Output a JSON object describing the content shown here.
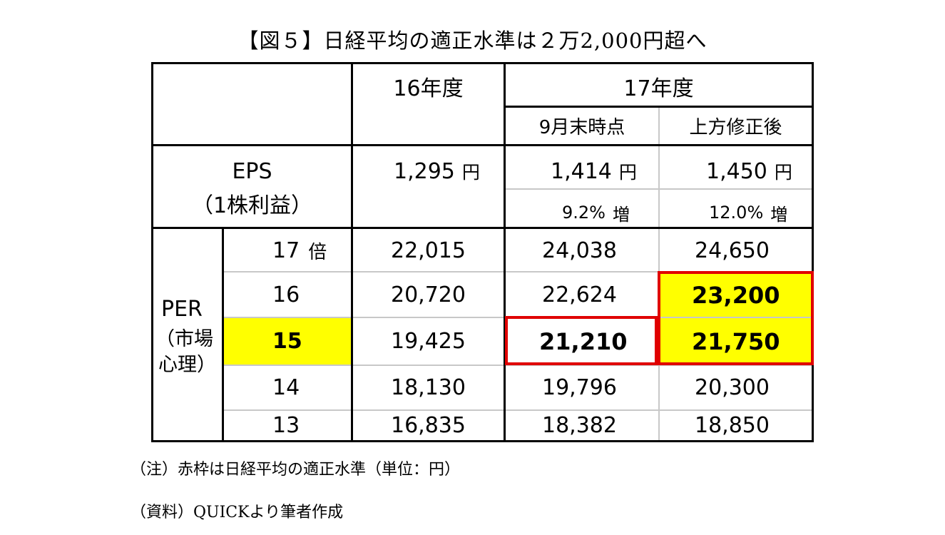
{
  "title": "【図５】日経平均の適正水準は２万2,000円超へ",
  "header": {
    "fy16": "16年度",
    "fy17": "17年度",
    "sep_end": "9月末時点",
    "revised": "上方修正後"
  },
  "eps": {
    "label1": "EPS",
    "label2": "（1株利益）",
    "fy16": "1,295",
    "sep_end": "1,414",
    "revised": "1,450",
    "unit": "円",
    "sep_end_growth": "9.2%",
    "revised_growth": "12.0%",
    "growth_unit": "増"
  },
  "per": {
    "label1": "PER",
    "label2": "（市場",
    "label3": "心理）",
    "times_unit": "倍",
    "rows": [
      {
        "multiple": "17",
        "fy16": "22,015",
        "sep_end": "24,038",
        "revised": "24,650"
      },
      {
        "multiple": "16",
        "fy16": "20,720",
        "sep_end": "22,624",
        "revised": "23,200"
      },
      {
        "multiple": "15",
        "fy16": "19,425",
        "sep_end": "21,210",
        "revised": "21,750"
      },
      {
        "multiple": "14",
        "fy16": "18,130",
        "sep_end": "19,796",
        "revised": "20,300"
      },
      {
        "multiple": "13",
        "fy16": "16,835",
        "sep_end": "18,382",
        "revised": "18,850"
      }
    ]
  },
  "notes": {
    "note": "（注）赤枠は日経平均の適正水準（単位：円）",
    "source": "（資料）QUICKより筆者作成"
  },
  "colors": {
    "highlight": "#ffff00",
    "frame": "#e00000"
  }
}
